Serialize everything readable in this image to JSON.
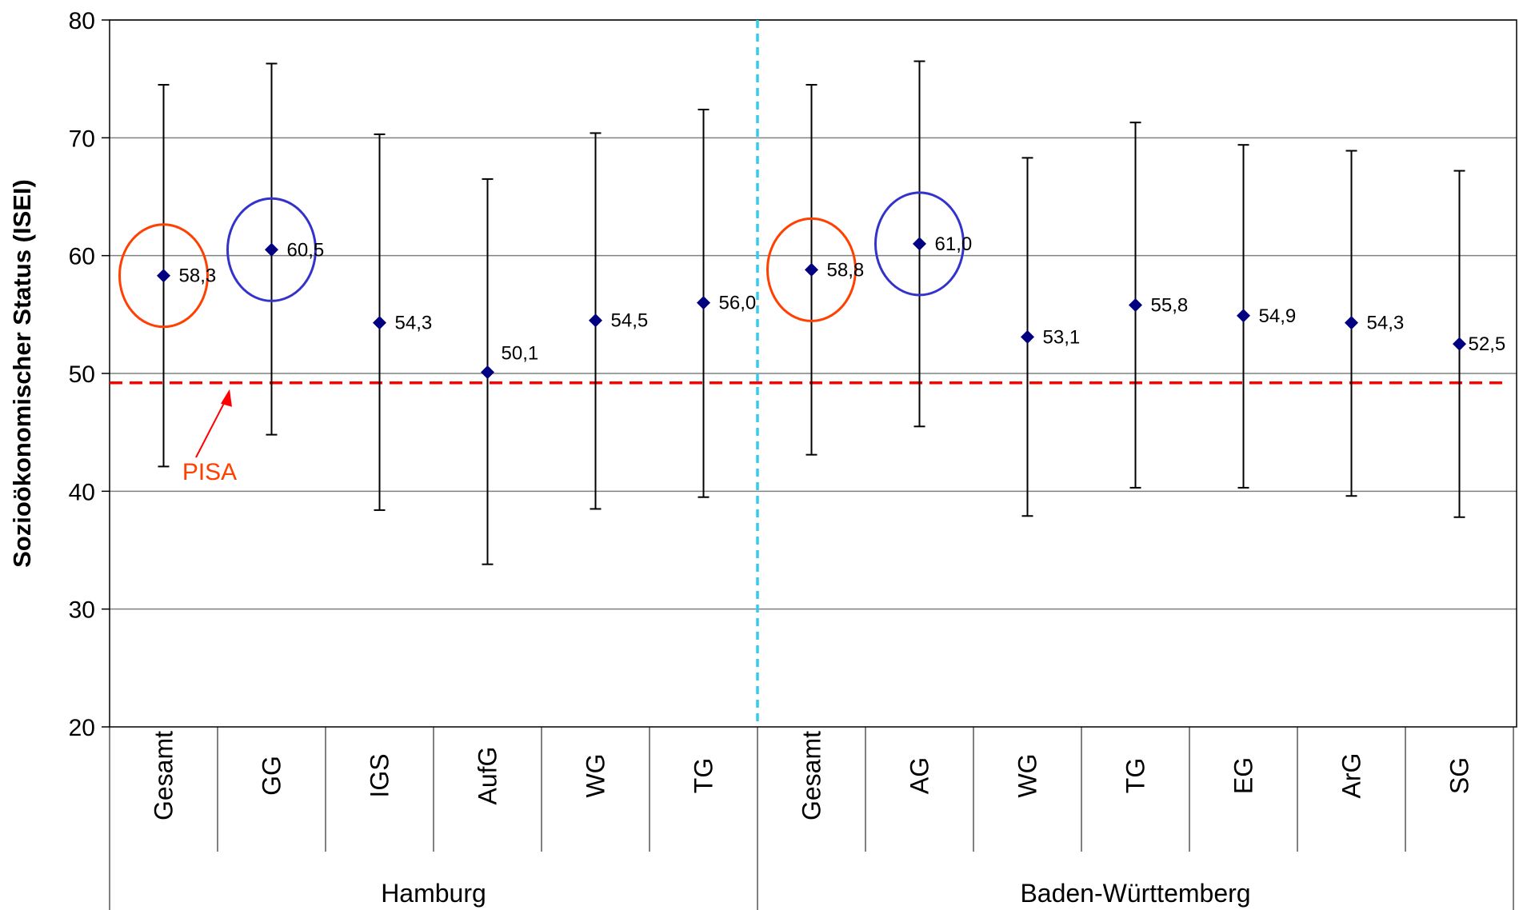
{
  "chart_data": {
    "type": "scatter",
    "ylabel": "Sozioökonomischer Status (ISEI)",
    "ylim": [
      20,
      80
    ],
    "yticks": [
      "20",
      "30",
      "40",
      "50",
      "60",
      "70",
      "80"
    ],
    "grid": true,
    "groups": [
      {
        "name": "Hamburg",
        "categories": [
          "Gesamt",
          "GG",
          "IGS",
          "AufG",
          "WG",
          "TG"
        ]
      },
      {
        "name": "Baden-Württemberg",
        "categories": [
          "Gesamt",
          "AG",
          "WG",
          "TG",
          "EG",
          "ArG",
          "SG"
        ]
      }
    ],
    "points": [
      {
        "group": "Hamburg",
        "category": "Gesamt",
        "value": 58.3,
        "label": "58,3",
        "low": 42.1,
        "high": 74.5,
        "highlight": "red"
      },
      {
        "group": "Hamburg",
        "category": "GG",
        "value": 60.5,
        "label": "60,5",
        "low": 44.8,
        "high": 76.3,
        "highlight": "blue"
      },
      {
        "group": "Hamburg",
        "category": "IGS",
        "value": 54.3,
        "label": "54,3",
        "low": 38.4,
        "high": 70.3,
        "highlight": null
      },
      {
        "group": "Hamburg",
        "category": "AufG",
        "value": 50.1,
        "label": "50,1",
        "low": 33.8,
        "high": 66.5,
        "highlight": null
      },
      {
        "group": "Hamburg",
        "category": "WG",
        "value": 54.5,
        "label": "54,5",
        "low": 38.5,
        "high": 70.4,
        "highlight": null
      },
      {
        "group": "Hamburg",
        "category": "TG",
        "value": 56.0,
        "label": "56,0",
        "low": 39.5,
        "high": 72.4,
        "highlight": null
      },
      {
        "group": "Baden-Württemberg",
        "category": "Gesamt",
        "value": 58.8,
        "label": "58,8",
        "low": 43.1,
        "high": 74.5,
        "highlight": "red"
      },
      {
        "group": "Baden-Württemberg",
        "category": "AG",
        "value": 61.0,
        "label": "61,0",
        "low": 45.5,
        "high": 76.5,
        "highlight": "blue"
      },
      {
        "group": "Baden-Württemberg",
        "category": "WG",
        "value": 53.1,
        "label": "53,1",
        "low": 37.9,
        "high": 68.3,
        "highlight": null
      },
      {
        "group": "Baden-Württemberg",
        "category": "TG",
        "value": 55.8,
        "label": "55,8",
        "low": 40.3,
        "high": 71.3,
        "highlight": null
      },
      {
        "group": "Baden-Württemberg",
        "category": "EG",
        "value": 54.9,
        "label": "54,9",
        "low": 40.3,
        "high": 69.4,
        "highlight": null
      },
      {
        "group": "Baden-Württemberg",
        "category": "ArG",
        "value": 54.3,
        "label": "54,3",
        "low": 39.6,
        "high": 68.9,
        "highlight": null
      },
      {
        "group": "Baden-Württemberg",
        "category": "SG",
        "value": 52.5,
        "label": "52,5",
        "low": 37.8,
        "high": 67.2,
        "highlight": null
      }
    ],
    "reference_line": {
      "label": "PISA",
      "value": 49.2,
      "color": "#ff0000"
    },
    "colors": {
      "marker": "#000080",
      "highlight_red": "#ff4000",
      "highlight_blue": "#3333cc",
      "group_divider": "#33ccee",
      "gridline": "#808080"
    }
  }
}
